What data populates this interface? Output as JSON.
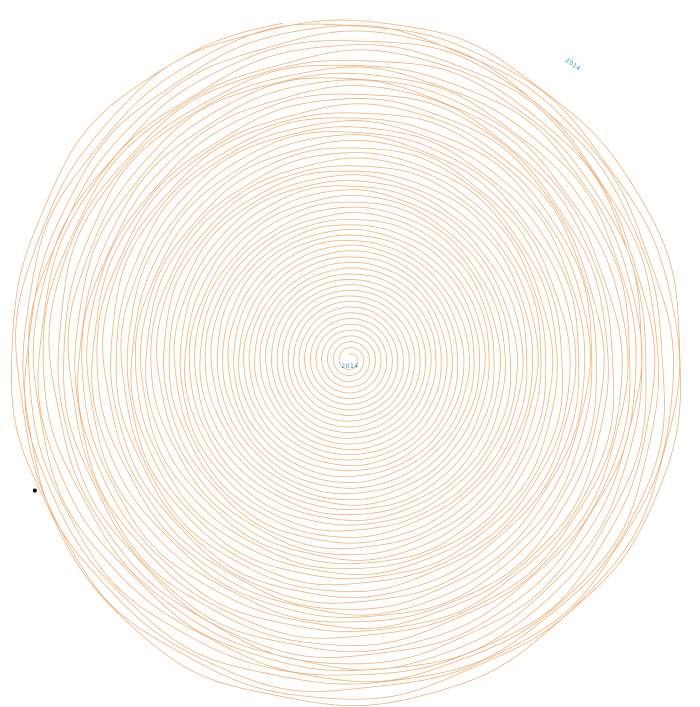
{
  "chart_data": {
    "type": "line",
    "layout": "spiral",
    "title": "",
    "xlabel": "",
    "ylabel": "",
    "grid": false,
    "legend": "none",
    "turns": 62,
    "start_label": "2014",
    "end_label": "2014",
    "series": [
      {
        "color": "#f0b27a",
        "marker_color": "#000000"
      }
    ],
    "label_color": "#2a8fbd"
  }
}
